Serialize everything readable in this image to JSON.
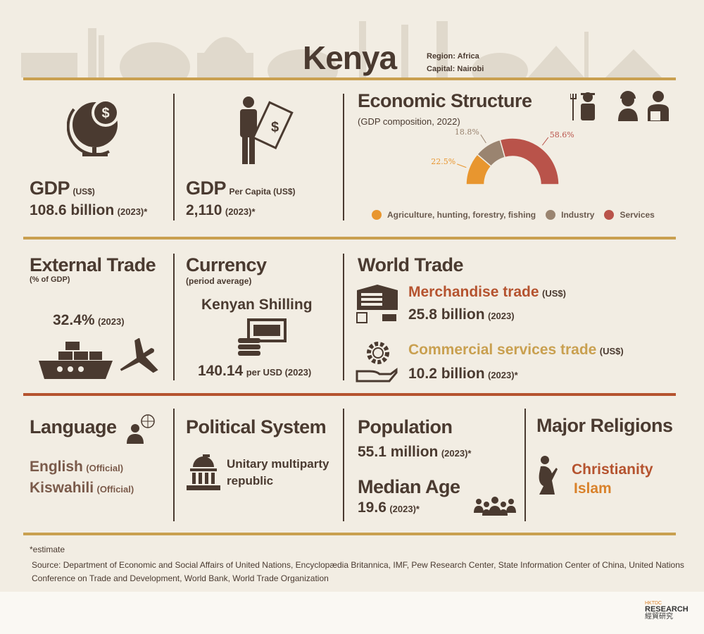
{
  "header": {
    "title": "Kenya",
    "region": "Region: Africa",
    "capital": "Capital: Nairobi"
  },
  "gdp": {
    "label": "GDP",
    "unit": "(US$)",
    "value": "108.6 billion",
    "year": "(2023)*"
  },
  "gdp_per_capita": {
    "label": "GDP",
    "unit": "Per Capita (US$)",
    "value": "2,110",
    "year": "(2023)*"
  },
  "economic_structure": {
    "title": "Economic Structure",
    "subtitle": "(GDP composition, 2022)"
  },
  "chart_data": {
    "type": "pie",
    "subtype": "half-donut",
    "title": "Economic Structure",
    "subtitle": "(GDP composition, 2022)",
    "legend_placement": "bottom",
    "slices": [
      {
        "name": "Agriculture, hunting, forestry, fishing",
        "value": 22.5,
        "label": "22.5%",
        "color": "#e8962f"
      },
      {
        "name": "Industry",
        "value": 18.8,
        "label": "18.8%",
        "color": "#9a8470"
      },
      {
        "name": "Services",
        "value": 58.6,
        "label": "58.6%",
        "color": "#b9534a"
      }
    ]
  },
  "external_trade": {
    "title": "External Trade",
    "subtitle": "(% of GDP)",
    "value": "32.4%",
    "year": "(2023)"
  },
  "currency": {
    "title": "Currency",
    "subtitle": "(period average)",
    "name": "Kenyan Shilling",
    "value": "140.14",
    "per": "per USD (2023)"
  },
  "world_trade": {
    "title": "World Trade",
    "merch_label": "Merchandise trade",
    "merch_unit": "(US$)",
    "merch_value": "25.8 billion",
    "merch_year": "(2023)",
    "serv_label": "Commercial services trade",
    "serv_unit": "(US$)",
    "serv_value": "10.2 billion",
    "serv_year": "(2023)*"
  },
  "language": {
    "title": "Language",
    "items": [
      {
        "name": "English",
        "note": "(Official)"
      },
      {
        "name": "Kiswahili",
        "note": "(Official)"
      }
    ]
  },
  "political": {
    "title": "Political System",
    "value": "Unitary multiparty republic"
  },
  "population": {
    "title": "Population",
    "value": "55.1 million",
    "year": "(2023)*",
    "median_title": "Median Age",
    "median_value": "19.6",
    "median_year": "(2023)*"
  },
  "religions": {
    "title": "Major Religions",
    "items": [
      "Christianity",
      "Islam"
    ]
  },
  "footer": {
    "note": "*estimate",
    "source": "Source: Department of Economic and Social Affairs of United Nations, Encyclopædia Britannica, IMF, Pew Research Center, State Information Center of China, United Nations Conference on Trade and Development, World Bank, World Trade Organization",
    "logo_top": "HKTDC",
    "logo_main": "RESEARCH",
    "logo_cn": "經貿研究"
  },
  "colors": {
    "text": "#4a3a30",
    "gold": "#c9a050",
    "rust": "#b5532f",
    "orange": "#d9822b",
    "merch": "#b5532f",
    "services": "#c9a050"
  }
}
